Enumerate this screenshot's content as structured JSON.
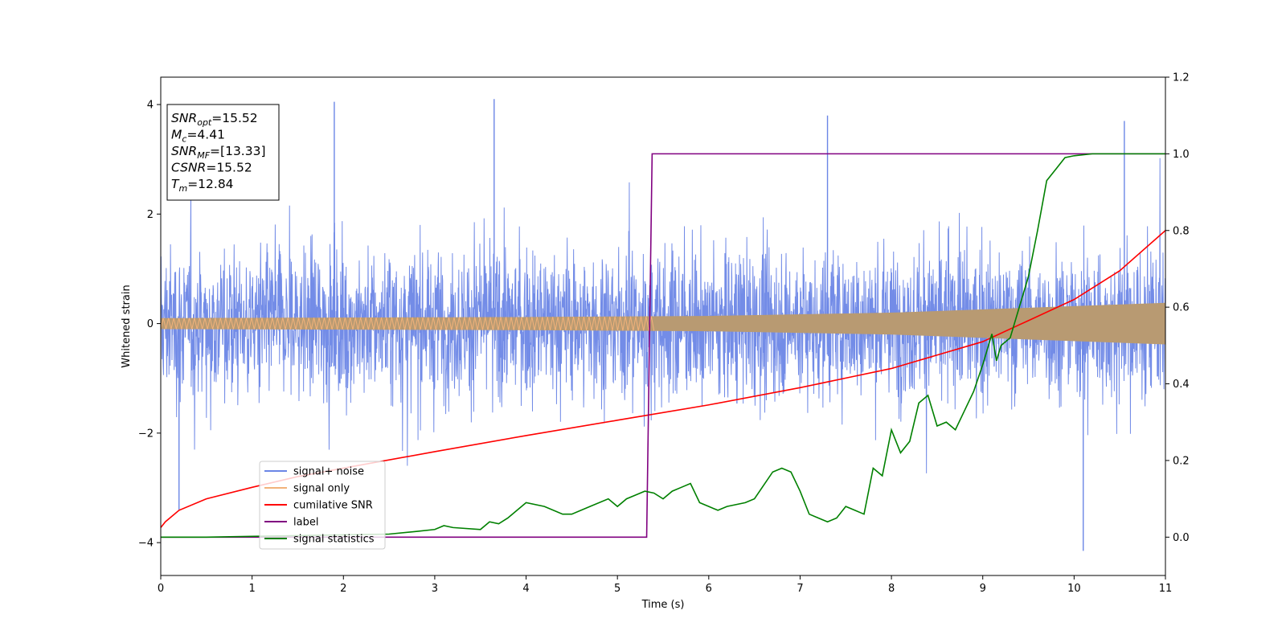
{
  "chart_data": {
    "type": "line",
    "xlabel": "Time (s)",
    "ylabel": "Whitened strain",
    "xlim": [
      0,
      11
    ],
    "ylim": [
      -4.6,
      4.5
    ],
    "ylim_right": [
      -0.1,
      1.2
    ],
    "x_ticks": [
      "0",
      "1",
      "2",
      "3",
      "4",
      "5",
      "6",
      "7",
      "8",
      "9",
      "10",
      "11"
    ],
    "y_ticks_left": [
      "−4",
      "−2",
      "0",
      "2",
      "4"
    ],
    "y_ticks_right": [
      "0.0",
      "0.2",
      "0.4",
      "0.6",
      "0.8",
      "1.0",
      "1.2"
    ],
    "grid": false,
    "legend_position": "lower-left",
    "info_box": [
      {
        "label": "SNR",
        "sub": "opt",
        "value": "=15.52"
      },
      {
        "label": "M",
        "sub": "c",
        "value": "=4.41"
      },
      {
        "label": "SNR",
        "sub": "MF",
        "value": "=[13.33]"
      },
      {
        "label": "CSNR",
        "sub": "",
        "value": "=15.52"
      },
      {
        "label": "T",
        "sub": "m",
        "value": "=12.84"
      }
    ],
    "series": [
      {
        "name": "signal+ noise",
        "axis": "left",
        "color": "#6b86e6",
        "kind": "noise",
        "note": "dense noise band, typical extent about ±2, peaks to about ±4",
        "peaks": [
          [
            0.2,
            -3.4
          ],
          [
            1.9,
            4.05
          ],
          [
            3.65,
            4.1
          ],
          [
            7.3,
            3.8
          ],
          [
            10.1,
            -4.15
          ],
          [
            10.55,
            3.7
          ]
        ]
      },
      {
        "name": "signal only",
        "axis": "left",
        "color": "#f2b27a",
        "kind": "chirp",
        "envelope": {
          "x": [
            0,
            2,
            4,
            6,
            8,
            9,
            10,
            11
          ],
          "y": [
            0.1,
            0.11,
            0.12,
            0.14,
            0.2,
            0.26,
            0.32,
            0.38
          ]
        }
      },
      {
        "name": "cumilative SNR",
        "axis": "right",
        "color": "#ff0000",
        "x": [
          0,
          0.05,
          0.2,
          0.5,
          1,
          1.5,
          2,
          3,
          4,
          5,
          6,
          7,
          7.5,
          8,
          8.5,
          9,
          9.5,
          10,
          10.5,
          11
        ],
        "y": [
          0.025,
          0.04,
          0.07,
          0.1,
          0.13,
          0.158,
          0.18,
          0.223,
          0.265,
          0.305,
          0.345,
          0.39,
          0.415,
          0.44,
          0.475,
          0.51,
          0.565,
          0.62,
          0.695,
          0.8
        ]
      },
      {
        "name": "label",
        "axis": "right",
        "color": "#800080",
        "x": [
          0,
          5.32,
          5.38,
          11
        ],
        "y": [
          0,
          0,
          1,
          1
        ]
      },
      {
        "name": "signal statistics",
        "axis": "right",
        "color": "#008000",
        "x": [
          0,
          0.5,
          1.0,
          1.5,
          2.0,
          2.5,
          2.8,
          3.0,
          3.1,
          3.2,
          3.5,
          3.6,
          3.7,
          3.8,
          4.0,
          4.2,
          4.4,
          4.5,
          4.7,
          4.9,
          5.0,
          5.1,
          5.2,
          5.3,
          5.4,
          5.5,
          5.6,
          5.7,
          5.8,
          5.9,
          6.0,
          6.1,
          6.2,
          6.4,
          6.5,
          6.7,
          6.8,
          6.9,
          7.0,
          7.1,
          7.2,
          7.3,
          7.4,
          7.5,
          7.6,
          7.7,
          7.8,
          7.9,
          8.0,
          8.1,
          8.2,
          8.3,
          8.4,
          8.5,
          8.6,
          8.7,
          8.8,
          8.9,
          9.0,
          9.1,
          9.15,
          9.2,
          9.3,
          9.4,
          9.5,
          9.6,
          9.7,
          9.8,
          9.9,
          10.0,
          10.2,
          10.5,
          11.0
        ],
        "y": [
          0,
          0,
          0.002,
          0.004,
          0.006,
          0.008,
          0.015,
          0.02,
          0.03,
          0.025,
          0.02,
          0.04,
          0.035,
          0.05,
          0.09,
          0.08,
          0.06,
          0.06,
          0.08,
          0.1,
          0.08,
          0.1,
          0.11,
          0.12,
          0.115,
          0.1,
          0.12,
          0.13,
          0.14,
          0.09,
          0.08,
          0.07,
          0.08,
          0.09,
          0.1,
          0.17,
          0.18,
          0.17,
          0.12,
          0.06,
          0.05,
          0.04,
          0.05,
          0.08,
          0.07,
          0.06,
          0.18,
          0.16,
          0.28,
          0.22,
          0.25,
          0.35,
          0.37,
          0.29,
          0.3,
          0.28,
          0.33,
          0.38,
          0.45,
          0.53,
          0.46,
          0.5,
          0.52,
          0.6,
          0.68,
          0.8,
          0.93,
          0.96,
          0.99,
          0.995,
          1.0,
          1.0,
          1.0
        ]
      }
    ]
  }
}
